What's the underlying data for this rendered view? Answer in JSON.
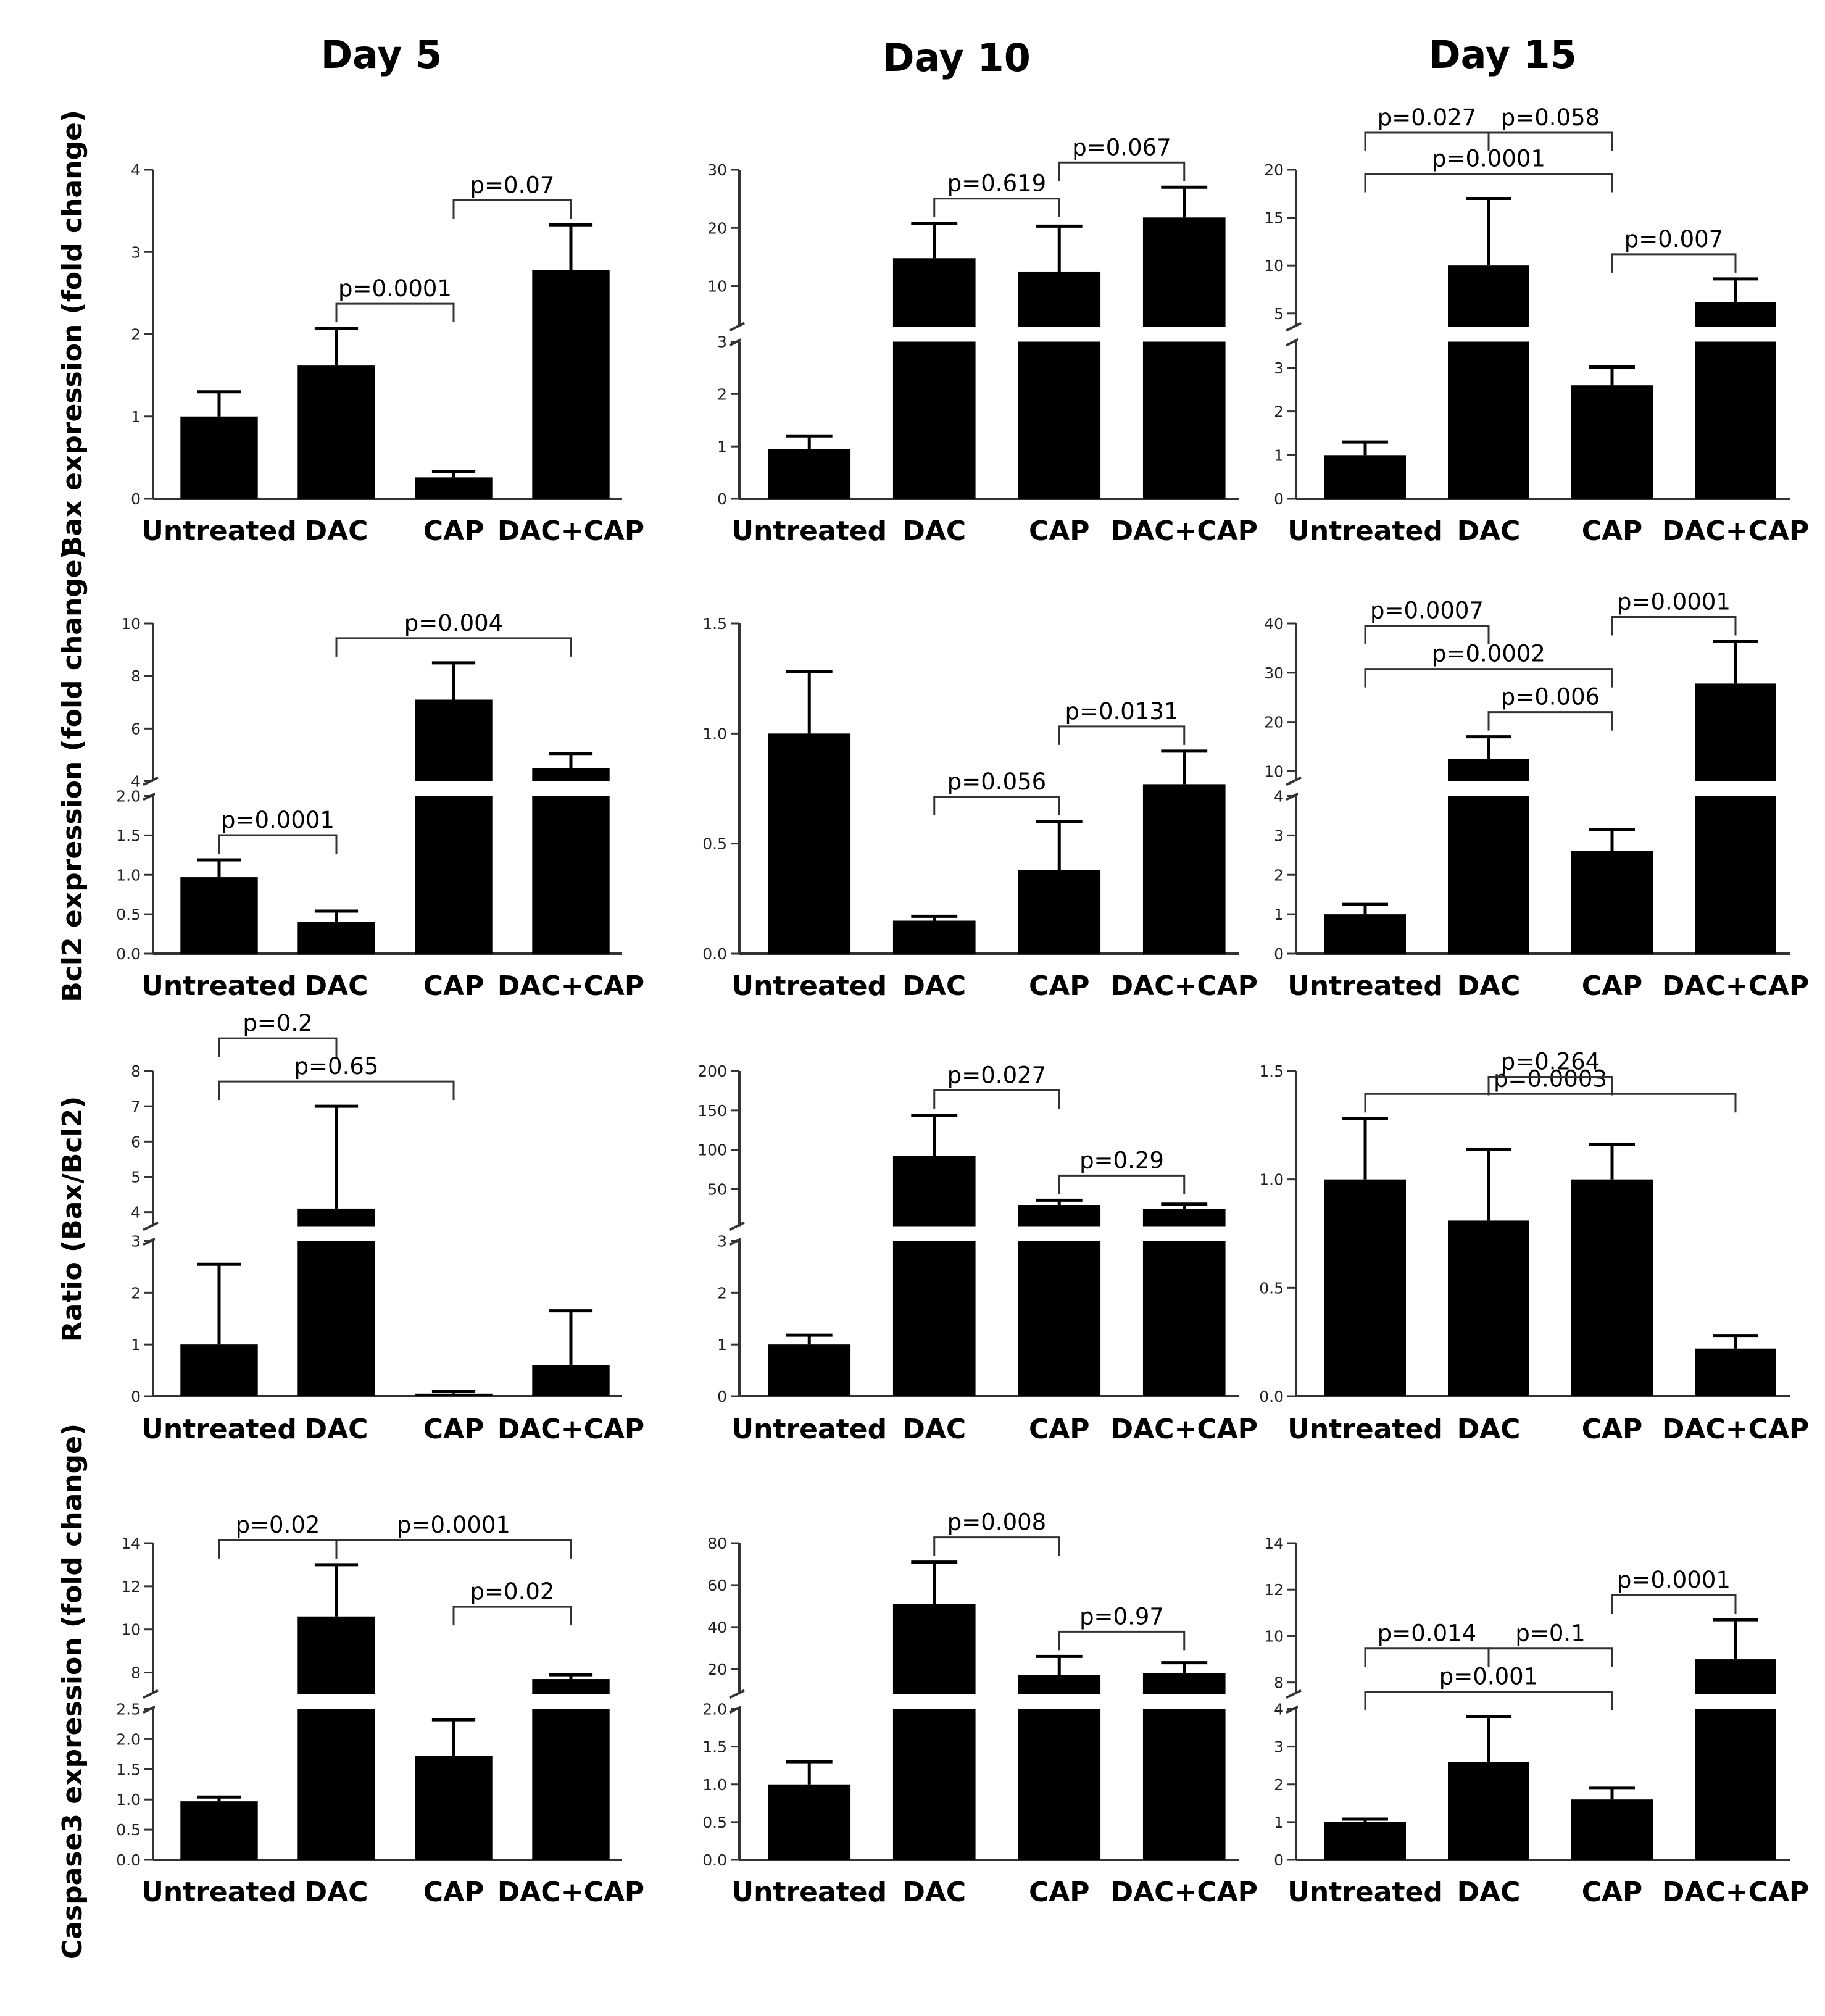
{
  "figure": {
    "column_titles": [
      "Day 5",
      "Day 10",
      "Day 15"
    ],
    "row_labels": [
      "Bax expression (fold change)",
      "Bcl2 expression (fold change)",
      "Ratio (Bax/Bcl2)",
      "Caspase3 expression (fold change)"
    ],
    "colors": {
      "bar": "#000000",
      "axis": "#333333",
      "background": "#ffffff"
    }
  },
  "chart_data": [
    {
      "id": "bax-day5",
      "type": "bar",
      "day": "Day 5",
      "ylabel": "Bax expression (fold change)",
      "categories": [
        "Untreated",
        "DAC",
        "CAP",
        "DAC+CAP"
      ],
      "values": [
        1.0,
        1.62,
        0.26,
        2.78
      ],
      "errors": [
        0.3,
        0.45,
        0.07,
        0.55
      ],
      "segments": [
        {
          "ylim": [
            0,
            4
          ],
          "ticks": [
            0,
            1,
            2,
            3,
            4
          ]
        }
      ],
      "annotations": [
        {
          "label": "p=0.0001",
          "from": 1,
          "to": 2
        },
        {
          "label": "p=0.07",
          "from": 2,
          "to": 3
        }
      ]
    },
    {
      "id": "bax-day10",
      "type": "bar",
      "day": "Day 10",
      "ylabel": "",
      "categories": [
        "Untreated",
        "DAC",
        "CAP",
        "DAC+CAP"
      ],
      "values": [
        0.95,
        14.8,
        12.5,
        21.8
      ],
      "errors": [
        0.25,
        6,
        7.8,
        5.2
      ],
      "segments": [
        {
          "ylim": [
            0,
            3
          ],
          "ticks": [
            0,
            1,
            2,
            3
          ]
        },
        {
          "ylim": [
            3,
            30
          ],
          "ticks": [
            10,
            20,
            30
          ]
        }
      ],
      "annotations": [
        {
          "label": "p=0.619",
          "from": 1,
          "to": 2
        },
        {
          "label": "p=0.067",
          "from": 2,
          "to": 3
        }
      ]
    },
    {
      "id": "bax-day15",
      "type": "bar",
      "day": "Day 15",
      "ylabel": "",
      "categories": [
        "Untreated",
        "DAC",
        "CAP",
        "DAC+CAP"
      ],
      "values": [
        1.0,
        10.0,
        2.6,
        6.2
      ],
      "errors": [
        0.3,
        7,
        0.42,
        2.4
      ],
      "segments": [
        {
          "ylim": [
            0,
            3.6
          ],
          "ticks": [
            0,
            1,
            2,
            3
          ]
        },
        {
          "ylim": [
            3.6,
            20
          ],
          "ticks": [
            5,
            10,
            15,
            20
          ]
        }
      ],
      "annotations": [
        {
          "label": "p=0.0001",
          "from": 0,
          "to": 2
        },
        {
          "label": "p=0.027",
          "from": 0,
          "to": 1
        },
        {
          "label": "p=0.058",
          "from": 1,
          "to": 2
        },
        {
          "label": "p=0.007",
          "from": 2,
          "to": 3
        }
      ]
    },
    {
      "id": "bcl2-day5",
      "type": "bar",
      "day": "Day 5",
      "ylabel": "Bcl2 expression (fold change)",
      "categories": [
        "Untreated",
        "DAC",
        "CAP",
        "DAC+CAP"
      ],
      "values": [
        0.97,
        0.4,
        7.1,
        4.5
      ],
      "errors": [
        0.22,
        0.14,
        1.4,
        0.55
      ],
      "segments": [
        {
          "ylim": [
            0,
            2
          ],
          "ticks": [
            0.0,
            0.5,
            1.0,
            1.5,
            2.0
          ]
        },
        {
          "ylim": [
            4,
            10
          ],
          "ticks": [
            4,
            6,
            8,
            10
          ]
        }
      ],
      "annotations": [
        {
          "label": "p=0.0001",
          "from": 0,
          "to": 1
        },
        {
          "label": "p=0.004",
          "from": 1,
          "to": 3
        }
      ]
    },
    {
      "id": "bcl2-day10",
      "type": "bar",
      "day": "Day 10",
      "ylabel": "",
      "categories": [
        "Untreated",
        "DAC",
        "CAP",
        "DAC+CAP"
      ],
      "values": [
        1.0,
        0.15,
        0.38,
        0.77
      ],
      "errors": [
        0.28,
        0.02,
        0.22,
        0.15
      ],
      "segments": [
        {
          "ylim": [
            0,
            1.5
          ],
          "ticks": [
            0.0,
            0.5,
            1.0,
            1.5
          ]
        }
      ],
      "annotations": [
        {
          "label": "p=0.056",
          "from": 1,
          "to": 2
        },
        {
          "label": "p=0.0131",
          "from": 2,
          "to": 3
        }
      ]
    },
    {
      "id": "bcl2-day15",
      "type": "bar",
      "day": "Day 15",
      "ylabel": "",
      "categories": [
        "Untreated",
        "DAC",
        "CAP",
        "DAC+CAP"
      ],
      "values": [
        1.0,
        12.5,
        2.6,
        27.8
      ],
      "errors": [
        0.25,
        4.5,
        0.55,
        8.5
      ],
      "segments": [
        {
          "ylim": [
            0,
            4
          ],
          "ticks": [
            0,
            1,
            2,
            3,
            4
          ]
        },
        {
          "ylim": [
            8,
            40
          ],
          "ticks": [
            10,
            20,
            30,
            40
          ]
        }
      ],
      "annotations": [
        {
          "label": "p=0.006",
          "from": 1,
          "to": 2
        },
        {
          "label": "p=0.0001",
          "from": 2,
          "to": 3
        },
        {
          "label": "p=0.0002",
          "from": 0,
          "to": 2
        },
        {
          "label": "p=0.0007",
          "from": 0,
          "to": 1
        }
      ]
    },
    {
      "id": "ratio-day5",
      "type": "bar",
      "day": "Day 5",
      "ylabel": "Ratio (Bax/Bcl2)",
      "categories": [
        "Untreated",
        "DAC",
        "CAP",
        "DAC+CAP"
      ],
      "values": [
        1.0,
        4.1,
        0.05,
        0.6
      ],
      "errors": [
        1.55,
        2.9,
        0.04,
        1.05
      ],
      "segments": [
        {
          "ylim": [
            0,
            3
          ],
          "ticks": [
            0,
            1,
            2,
            3
          ]
        },
        {
          "ylim": [
            3.6,
            8
          ],
          "ticks": [
            4,
            5,
            6,
            7,
            8
          ]
        }
      ],
      "annotations": [
        {
          "label": "p=0.65",
          "from": 0,
          "to": 2
        },
        {
          "label": "p=0.2",
          "from": 0,
          "to": 1
        }
      ]
    },
    {
      "id": "ratio-day10",
      "type": "bar",
      "day": "Day 10",
      "ylabel": "",
      "categories": [
        "Untreated",
        "DAC",
        "CAP",
        "DAC+CAP"
      ],
      "values": [
        1.0,
        92,
        30,
        25
      ],
      "errors": [
        0.18,
        52,
        6,
        6
      ],
      "segments": [
        {
          "ylim": [
            0,
            3
          ],
          "ticks": [
            0,
            1,
            2,
            3
          ]
        },
        {
          "ylim": [
            3,
            200
          ],
          "ticks": [
            50,
            100,
            150,
            200
          ]
        }
      ],
      "annotations": [
        {
          "label": "p=0.027",
          "from": 1,
          "to": 2
        },
        {
          "label": "p=0.29",
          "from": 2,
          "to": 3
        }
      ]
    },
    {
      "id": "ratio-day15",
      "type": "bar",
      "day": "Day 15",
      "ylabel": "",
      "categories": [
        "Untreated",
        "DAC",
        "CAP",
        "DAC+CAP"
      ],
      "values": [
        1.0,
        0.81,
        1.0,
        0.22
      ],
      "errors": [
        0.28,
        0.33,
        0.16,
        0.06
      ],
      "segments": [
        {
          "ylim": [
            0,
            1.5
          ],
          "ticks": [
            0.0,
            0.5,
            1.0,
            1.5
          ]
        }
      ],
      "annotations": [
        {
          "label": "p=0.0003",
          "from": 0,
          "to": 3
        },
        {
          "label": "p=0.264",
          "from": 1,
          "to": 2
        }
      ]
    },
    {
      "id": "casp3-day5",
      "type": "bar",
      "day": "Day 5",
      "ylabel": "Caspase3 expression (fold change)",
      "categories": [
        "Untreated",
        "DAC",
        "CAP",
        "DAC+CAP"
      ],
      "values": [
        0.97,
        10.6,
        1.72,
        7.7
      ],
      "errors": [
        0.07,
        2.4,
        0.6,
        0.2
      ],
      "segments": [
        {
          "ylim": [
            0,
            2.5
          ],
          "ticks": [
            0.0,
            0.5,
            1.0,
            1.5,
            2.0,
            2.5
          ]
        },
        {
          "ylim": [
            7,
            14
          ],
          "ticks": [
            8,
            10,
            12,
            14
          ]
        }
      ],
      "annotations": [
        {
          "label": "p=0.0001",
          "from": 1,
          "to": 3
        },
        {
          "label": "p=0.02",
          "from": 2,
          "to": 3
        },
        {
          "label": "p=0.02",
          "from": 0,
          "to": 1
        }
      ]
    },
    {
      "id": "casp3-day10",
      "type": "bar",
      "day": "Day 10",
      "ylabel": "",
      "categories": [
        "Untreated",
        "DAC",
        "CAP",
        "DAC+CAP"
      ],
      "values": [
        1.0,
        51,
        17,
        18
      ],
      "errors": [
        0.3,
        20,
        9,
        5
      ],
      "segments": [
        {
          "ylim": [
            0,
            2
          ],
          "ticks": [
            0.0,
            0.5,
            1.0,
            1.5,
            2.0
          ]
        },
        {
          "ylim": [
            8,
            80
          ],
          "ticks": [
            20,
            40,
            60,
            80
          ]
        }
      ],
      "annotations": [
        {
          "label": "p=0.008",
          "from": 1,
          "to": 2
        },
        {
          "label": "p=0.97",
          "from": 2,
          "to": 3
        }
      ]
    },
    {
      "id": "casp3-day15",
      "type": "bar",
      "day": "Day 15",
      "ylabel": "",
      "categories": [
        "Untreated",
        "DAC",
        "CAP",
        "DAC+CAP"
      ],
      "values": [
        1.0,
        2.6,
        1.6,
        9.0
      ],
      "errors": [
        0.08,
        1.2,
        0.3,
        1.7
      ],
      "segments": [
        {
          "ylim": [
            0,
            4
          ],
          "ticks": [
            0,
            1,
            2,
            3,
            4
          ]
        },
        {
          "ylim": [
            7.5,
            14
          ],
          "ticks": [
            8,
            10,
            12,
            14
          ]
        }
      ],
      "annotations": [
        {
          "label": "p=0.001",
          "from": 0,
          "to": 2
        },
        {
          "label": "p=0.0001",
          "from": 2,
          "to": 3
        },
        {
          "label": "p=0.014",
          "from": 0,
          "to": 1
        },
        {
          "label": "p=0.1",
          "from": 1,
          "to": 2
        }
      ]
    }
  ]
}
